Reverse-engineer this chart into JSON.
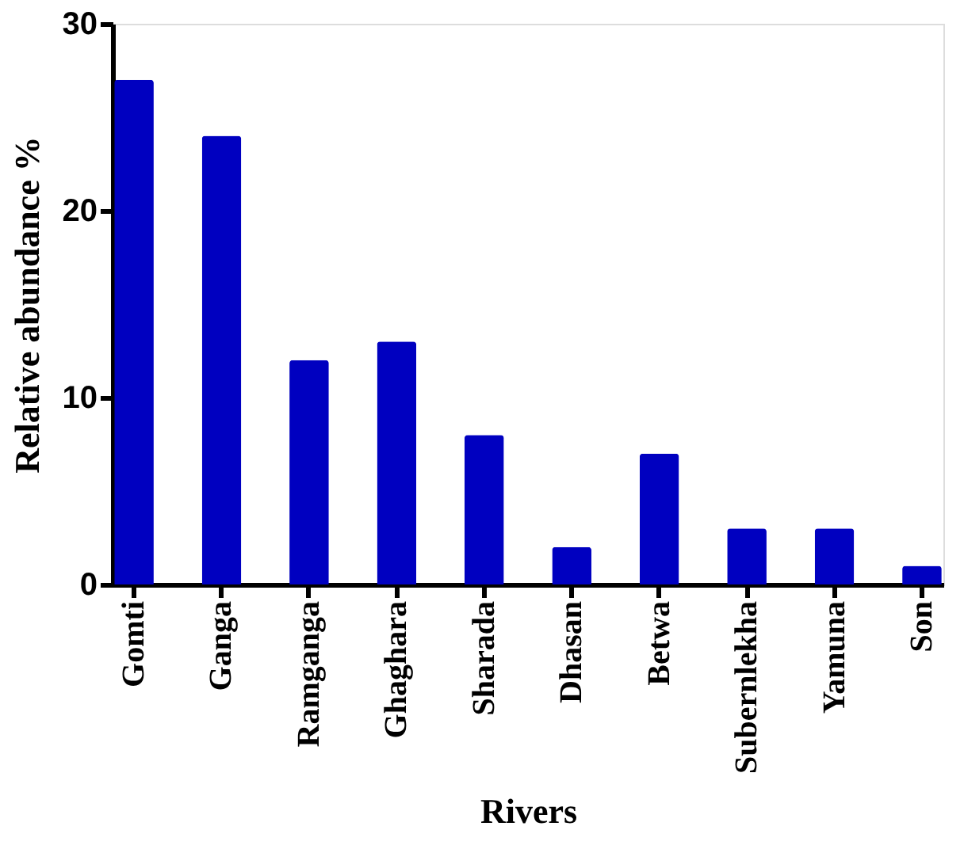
{
  "chart_data": {
    "type": "bar",
    "xlabel": "Rivers",
    "ylabel": "Relative abundance %",
    "categories": [
      "Gomti",
      "Ganga",
      "Ramganga",
      "Ghaghara",
      "Sharada",
      "Dhasan",
      "Betwa",
      "Subernlekha",
      "Yamuna",
      "Son"
    ],
    "values": [
      27,
      24,
      12,
      13,
      8,
      2,
      7,
      3,
      3,
      1
    ],
    "color": "#0000c0",
    "ylim": [
      0,
      30
    ],
    "yticks": [
      0,
      10,
      20,
      30
    ],
    "grid": false
  }
}
